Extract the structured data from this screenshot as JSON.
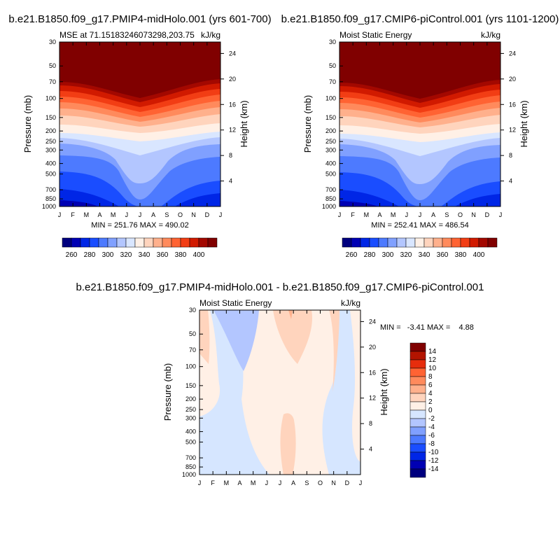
{
  "panels": [
    {
      "title": "b.e21.B1850.f09_g17.PMIP4-midHolo.001 (yrs 601-700)",
      "left_label": "MSE at 71.15183246073298,203.75",
      "right_label": "kJ/kg",
      "stats": "MIN = 251.76 MAX = 490.02"
    },
    {
      "title": "b.e21.B1850.f09_g17.CMIP6-piControl.001 (yrs 1101-1200)",
      "left_label": "Moist Static Energy",
      "right_label": "kJ/kg",
      "stats": "MIN = 252.41 MAX = 486.54"
    },
    {
      "title": "b.e21.B1850.f09_g17.PMIP4-midHolo.001 - b.e21.B1850.f09_g17.CMIP6-piControl.001",
      "left_label": "Moist Static Energy",
      "right_label": "kJ/kg",
      "stats": "MIN =   -3.41 MAX =    4.88"
    }
  ],
  "colors": {
    "abs_scale": [
      "#00007f",
      "#0000b3",
      "#0026e6",
      "#1a4dff",
      "#4d7aff",
      "#80a0ff",
      "#b3c6ff",
      "#d9e6ff",
      "#fff0e6",
      "#ffd4bd",
      "#ffb08c",
      "#ff8a5c",
      "#ff6333",
      "#f23d14",
      "#d11a00",
      "#a30800",
      "#800000"
    ],
    "diff_scale": [
      "#00007f",
      "#0000b3",
      "#0026e6",
      "#1a4dff",
      "#4d7aff",
      "#80a0ff",
      "#b3c6ff",
      "#d6e6ff",
      "#fff0e6",
      "#ffd4bd",
      "#ffb08c",
      "#ff8a5c",
      "#ff6333",
      "#e62d0d",
      "#b31400",
      "#800000"
    ]
  },
  "chart_data": [
    {
      "type": "heatmap",
      "title": "b.e21.B1850.f09_g17.PMIP4-midHolo.001 (yrs 601-700)",
      "ylabel": "Pressure (mb)",
      "ylabel_right": "Height (km)",
      "x_ticks": [
        "J",
        "F",
        "M",
        "A",
        "M",
        "J",
        "J",
        "A",
        "S",
        "O",
        "N",
        "D",
        "J"
      ],
      "y_ticks": [
        "30",
        "50",
        "70",
        "100",
        "150",
        "200",
        "250",
        "300",
        "400",
        "500",
        "700",
        "850",
        "1000"
      ],
      "y_right_ticks": [
        "24",
        "20",
        "16",
        "12",
        "8",
        "4"
      ],
      "colorbar_ticks": [
        "260",
        "280",
        "300",
        "320",
        "340",
        "360",
        "380",
        "400"
      ],
      "min": 251.76,
      "max": 490.02
    },
    {
      "type": "heatmap",
      "title": "b.e21.B1850.f09_g17.CMIP6-piControl.001 (yrs 1101-1200)",
      "ylabel": "Pressure (mb)",
      "ylabel_right": "Height (km)",
      "x_ticks": [
        "J",
        "F",
        "M",
        "A",
        "M",
        "J",
        "J",
        "A",
        "S",
        "O",
        "N",
        "D",
        "J"
      ],
      "y_ticks": [
        "30",
        "50",
        "70",
        "100",
        "150",
        "200",
        "250",
        "300",
        "400",
        "500",
        "700",
        "850",
        "1000"
      ],
      "y_right_ticks": [
        "24",
        "20",
        "16",
        "12",
        "8",
        "4"
      ],
      "colorbar_ticks": [
        "260",
        "280",
        "300",
        "320",
        "340",
        "360",
        "380",
        "400"
      ],
      "min": 252.41,
      "max": 486.54
    },
    {
      "type": "heatmap",
      "title": "b.e21.B1850.f09_g17.PMIP4-midHolo.001 - b.e21.B1850.f09_g17.CMIP6-piControl.001",
      "ylabel": "Pressure (mb)",
      "ylabel_right": "Height (km)",
      "x_ticks": [
        "J",
        "F",
        "M",
        "A",
        "M",
        "J",
        "J",
        "A",
        "S",
        "O",
        "N",
        "D",
        "J"
      ],
      "y_ticks": [
        "30",
        "50",
        "70",
        "100",
        "150",
        "200",
        "250",
        "300",
        "400",
        "500",
        "700",
        "850",
        "1000"
      ],
      "y_right_ticks": [
        "24",
        "20",
        "16",
        "12",
        "8",
        "4"
      ],
      "colorbar_ticks": [
        "14",
        "12",
        "10",
        "8",
        "6",
        "4",
        "2",
        "0",
        "-2",
        "-4",
        "-6",
        "-8",
        "-10",
        "-12",
        "-14"
      ],
      "min": -3.41,
      "max": 4.88
    }
  ]
}
